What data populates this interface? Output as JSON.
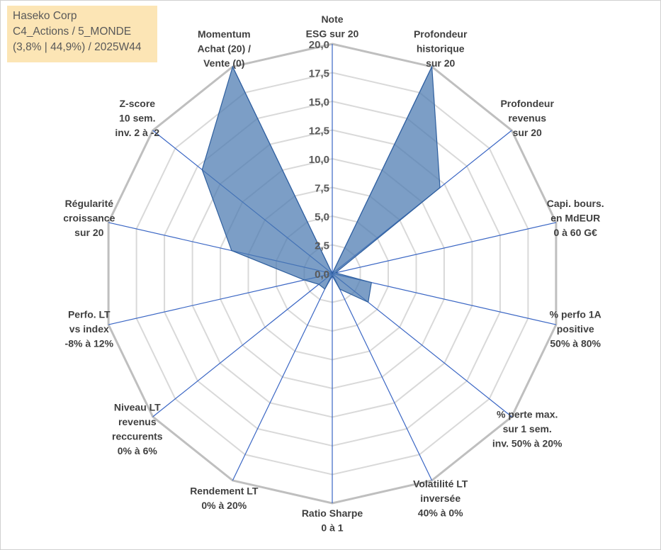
{
  "info_box": {
    "line1": "Haseko Corp",
    "line2": "C4_Actions / 5_MONDE",
    "line3": "(3,8% | 44,9%) / 2025W44"
  },
  "colors": {
    "fill": "#4a78b0",
    "stroke": "#2f5f9e",
    "grid_outer": "#bfbfbf",
    "grid_inner": "#d9d9d9",
    "spoke": "#3a66c4",
    "text": "#404040",
    "info_bg": "#fce5b5"
  },
  "chart_data": {
    "type": "radar",
    "rmax": 20,
    "rmin": 0,
    "gridlines": [
      0,
      2.5,
      5,
      7.5,
      10,
      12.5,
      15,
      17.5,
      20
    ],
    "tick_labels": [
      "0,0",
      "2,5",
      "5,0",
      "7,5",
      "10,0",
      "12,5",
      "15,0",
      "17,5",
      "20,0"
    ],
    "axes": [
      {
        "label": [
          "Note",
          "ESG sur 20"
        ],
        "value": 0
      },
      {
        "label": [
          "Profondeur",
          "historique",
          "sur 20"
        ],
        "value": 20
      },
      {
        "label": [
          "Profondeur",
          "revenus",
          "sur 20"
        ],
        "value": 12
      },
      {
        "label": [
          "Capi. bours.",
          "en MdEUR",
          "0 à 60 G€"
        ],
        "value": 0.3
      },
      {
        "label": [
          "% perfo 1A",
          "positive",
          "50% à 80%"
        ],
        "value": 3.5
      },
      {
        "label": [
          "% perte max.",
          "sur 1 sem.",
          "inv. 50% à 20%"
        ],
        "value": 4
      },
      {
        "label": [
          "Volatilité LT",
          "inversée",
          "40% à 0%"
        ],
        "value": 1.5
      },
      {
        "label": [
          "Ratio Sharpe",
          "0 à 1"
        ],
        "value": 0.2
      },
      {
        "label": [
          "Rendement LT",
          "0% à 20%"
        ],
        "value": 1.5
      },
      {
        "label": [
          "Niveau LT",
          "revenus",
          "reccurents",
          "0% à 6%"
        ],
        "value": 1.5
      },
      {
        "label": [
          "Perfo. LT",
          "vs index",
          "-8% à 12%"
        ],
        "value": 2.5
      },
      {
        "label": [
          "Régularité",
          "croissance",
          "sur 20"
        ],
        "value": 9
      },
      {
        "label": [
          "Z-score",
          "10 sem.",
          "inv. 2 à -2"
        ],
        "value": 14.5
      },
      {
        "label": [
          "Momentum",
          "Achat (20) /",
          "Vente (0)"
        ],
        "value": 20
      }
    ]
  }
}
